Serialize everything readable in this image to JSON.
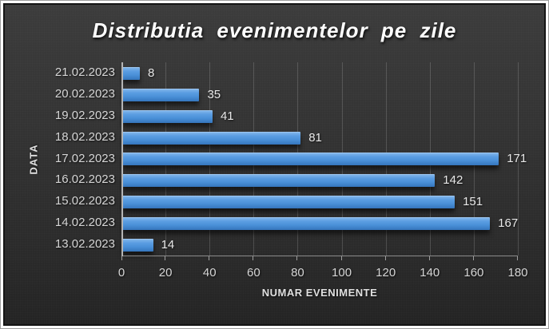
{
  "frame": {
    "mat_color": "#ffffff",
    "outer_border_color": "#9d9d9d",
    "inner_border_color": "#141414"
  },
  "chart_data": {
    "type": "bar",
    "orientation": "horizontal",
    "title": "Distributia evenimentelor pe zile",
    "xlabel": "NUMAR EVENIMENTE",
    "ylabel": "DATA",
    "categories": [
      "21.02.2023",
      "20.02.2023",
      "19.02.2023",
      "18.02.2023",
      "17.02.2023",
      "16.02.2023",
      "15.02.2023",
      "14.02.2023",
      "13.02.2023"
    ],
    "values": [
      8,
      35,
      41,
      81,
      171,
      142,
      151,
      167,
      14
    ],
    "xlim": [
      0,
      180
    ],
    "xticks": [
      0,
      20,
      40,
      60,
      80,
      100,
      120,
      140,
      160,
      180
    ],
    "grid": true,
    "legend": false,
    "data_labels": true,
    "bar_color": "#4a90d8",
    "background_color": "#2e2e2e",
    "title_color": "#ffffff",
    "label_color": "#d6d6d6",
    "axis_color": "#b5b5b5",
    "gridline_color": "#5a5a5a"
  }
}
